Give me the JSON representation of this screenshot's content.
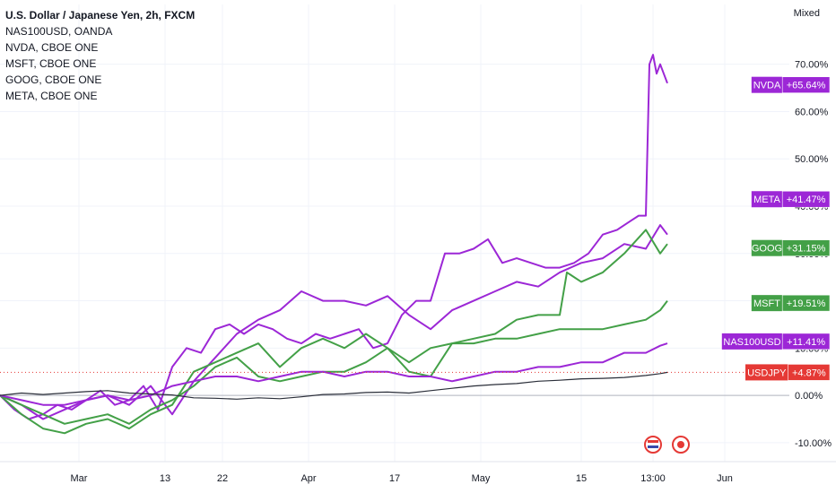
{
  "header": {
    "title": "U.S. Dollar / Japanese Yen, 2h, FXCM",
    "comparisons": [
      "NAS100USD, OANDA",
      "NVDA, CBOE ONE",
      "MSFT, CBOE ONE",
      "GOOG, CBOE ONE",
      "META, CBOE ONE"
    ],
    "scale_mode": "Mixed"
  },
  "colors": {
    "purple": "#9c27d6",
    "green": "#43a047",
    "red": "#e53935",
    "price": "#2a2e39",
    "grid": "#f0f3fa",
    "axis_text": "#131722"
  },
  "chart_data": {
    "type": "line",
    "y_unit": "%",
    "ylim": [
      -14,
      76
    ],
    "y_ticks": [
      -10,
      0,
      10,
      20,
      30,
      40,
      50,
      60,
      70
    ],
    "y_tick_labels": [
      "-10.00%",
      "0.00%",
      "10.00%",
      "20.00%",
      "30.00%",
      "40.00%",
      "50.00%",
      "60.00%",
      "70.00%"
    ],
    "x_tick_labels": [
      "Mar",
      "13",
      "22",
      "Apr",
      "17",
      "May",
      "15",
      "13:00",
      "Jun"
    ],
    "x_tick_pos": [
      11,
      23,
      31,
      43,
      55,
      67,
      81,
      91,
      101
    ],
    "xlim": [
      0,
      110
    ],
    "series": [
      {
        "name": "NVDA",
        "color": "purple",
        "last": "+65.64%",
        "last_value": 65.64,
        "x": [
          0,
          2,
          4,
          6,
          8,
          10,
          12,
          14,
          16,
          18,
          20,
          22,
          24,
          26,
          28,
          30,
          32,
          34,
          36,
          38,
          40,
          42,
          44,
          46,
          48,
          50,
          52,
          54,
          56,
          58,
          60,
          62,
          64,
          66,
          68,
          70,
          72,
          74,
          76,
          78,
          80,
          82,
          84,
          86,
          88,
          89,
          90,
          90.5,
          91,
          91.5,
          92,
          93
        ],
        "y": [
          0,
          -3,
          -5,
          -4,
          -2,
          -3,
          -1,
          1,
          -2,
          -1,
          2,
          -3,
          6,
          10,
          9,
          14,
          15,
          13,
          15,
          14,
          12,
          11,
          13,
          12,
          13,
          14,
          10,
          11,
          17,
          20,
          20,
          30,
          30,
          31,
          33,
          28,
          29,
          28,
          27,
          27,
          28,
          30,
          34,
          35,
          37,
          38,
          38,
          70,
          72,
          68,
          70,
          66
        ]
      },
      {
        "name": "META",
        "color": "purple",
        "last": "+41.47%",
        "last_value": 41.47,
        "x": [
          0,
          3,
          6,
          9,
          12,
          15,
          18,
          21,
          24,
          27,
          30,
          33,
          36,
          39,
          42,
          45,
          48,
          51,
          54,
          57,
          60,
          63,
          66,
          69,
          72,
          75,
          78,
          81,
          84,
          87,
          90,
          92,
          93
        ],
        "y": [
          0,
          -2,
          -5,
          -3,
          -1,
          0,
          -2,
          2,
          -4,
          3,
          8,
          13,
          16,
          18,
          22,
          20,
          20,
          19,
          21,
          17,
          14,
          18,
          20,
          22,
          24,
          23,
          26,
          28,
          29,
          32,
          31,
          36,
          34
        ]
      },
      {
        "name": "GOOG",
        "color": "green",
        "last": "+31.15%",
        "last_value": 31.15,
        "x": [
          0,
          3,
          6,
          9,
          12,
          15,
          18,
          21,
          24,
          27,
          30,
          33,
          36,
          39,
          42,
          45,
          48,
          51,
          54,
          57,
          60,
          63,
          66,
          69,
          72,
          75,
          78,
          79,
          81,
          84,
          87,
          90,
          92,
          93
        ],
        "y": [
          0,
          -4,
          -7,
          -8,
          -6,
          -5,
          -7,
          -4,
          -2,
          5,
          7,
          9,
          11,
          6,
          10,
          12,
          10,
          13,
          10,
          5,
          4,
          11,
          12,
          13,
          16,
          17,
          17,
          26,
          24,
          26,
          30,
          35,
          30,
          32
        ]
      },
      {
        "name": "MSFT",
        "color": "green",
        "last": "+19.51%",
        "last_value": 19.51,
        "x": [
          0,
          3,
          6,
          9,
          12,
          15,
          18,
          21,
          24,
          27,
          30,
          33,
          36,
          39,
          42,
          45,
          48,
          51,
          54,
          57,
          60,
          63,
          66,
          69,
          72,
          75,
          78,
          81,
          84,
          87,
          90,
          92,
          93
        ],
        "y": [
          0,
          -2,
          -4,
          -6,
          -5,
          -4,
          -6,
          -3,
          -1,
          2,
          6,
          8,
          4,
          3,
          4,
          5,
          5,
          7,
          10,
          7,
          10,
          11,
          11,
          12,
          12,
          13,
          14,
          14,
          14,
          15,
          16,
          18,
          20
        ]
      },
      {
        "name": "NAS100USD",
        "color": "purple",
        "last": "+11.41%",
        "last_value": 11.41,
        "x": [
          0,
          3,
          6,
          9,
          12,
          15,
          18,
          21,
          24,
          27,
          30,
          33,
          36,
          39,
          42,
          45,
          48,
          51,
          54,
          57,
          60,
          63,
          66,
          69,
          72,
          75,
          78,
          81,
          84,
          87,
          90,
          92,
          93
        ],
        "y": [
          0,
          -1,
          -2,
          -2,
          -1,
          0,
          -1,
          0,
          2,
          3,
          4,
          4,
          3,
          4,
          5,
          5,
          4,
          5,
          5,
          4,
          4,
          3,
          4,
          5,
          5,
          6,
          6,
          7,
          7,
          9,
          9,
          10.5,
          11
        ]
      },
      {
        "name": "USDJPY",
        "color": "red",
        "last": "+4.87%",
        "last_value": 4.87,
        "x": [
          0,
          3,
          6,
          9,
          12,
          15,
          18,
          21,
          24,
          27,
          30,
          33,
          36,
          39,
          42,
          45,
          48,
          51,
          54,
          57,
          60,
          63,
          66,
          69,
          72,
          75,
          78,
          81,
          84,
          87,
          90,
          92,
          93
        ],
        "y": [
          0,
          0.5,
          0.2,
          0.5,
          0.8,
          1.0,
          0.5,
          0.3,
          0.1,
          -0.5,
          -0.6,
          -0.8,
          -0.5,
          -0.7,
          -0.3,
          0.2,
          0.3,
          0.6,
          0.7,
          0.5,
          1.0,
          1.5,
          2.0,
          2.3,
          2.5,
          3.0,
          3.2,
          3.5,
          3.6,
          3.8,
          4.2,
          4.6,
          4.87
        ]
      }
    ]
  }
}
